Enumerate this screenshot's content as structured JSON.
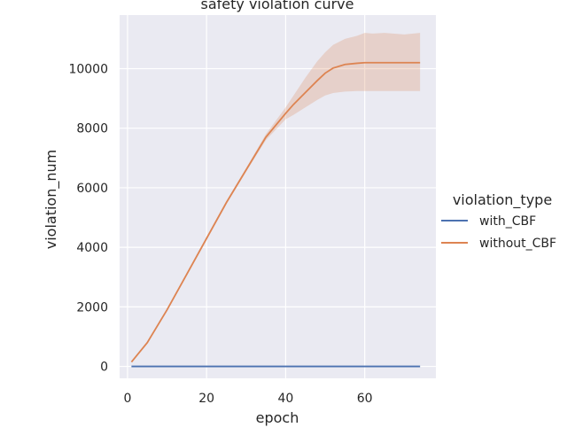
{
  "chart_data": {
    "type": "line",
    "title": "safety violation curve",
    "xlabel": "epoch",
    "ylabel": "violation_num",
    "xlim": [
      -2,
      78
    ],
    "ylim": [
      -400,
      11800
    ],
    "xticks": [
      "0",
      "20",
      "40",
      "60"
    ],
    "xtick_values": [
      0,
      20,
      40,
      60
    ],
    "yticks": [
      "0",
      "2000",
      "4000",
      "6000",
      "8000",
      "10000"
    ],
    "ytick_values": [
      0,
      2000,
      4000,
      6000,
      8000,
      10000
    ],
    "grid": true,
    "legend": {
      "title": "violation_type",
      "placement": "right"
    },
    "series": [
      {
        "name": "with_CBF",
        "color": "#4c72b0",
        "x": [
          1,
          74
        ],
        "y": [
          0,
          0
        ]
      },
      {
        "name": "without_CBF",
        "color": "#dd8452",
        "x": [
          1,
          5,
          10,
          15,
          20,
          25,
          30,
          35,
          40,
          42,
          45,
          48,
          50,
          52,
          55,
          58,
          60,
          62,
          65,
          70,
          74
        ],
        "y": [
          150,
          800,
          1900,
          3100,
          4300,
          5500,
          6600,
          7700,
          8500,
          8800,
          9200,
          9600,
          9850,
          10020,
          10140,
          10180,
          10200,
          10200,
          10200,
          10200,
          10200
        ],
        "ci_low": [
          150,
          780,
          1860,
          3050,
          4240,
          5440,
          6540,
          7600,
          8300,
          8450,
          8700,
          8950,
          9100,
          9180,
          9230,
          9250,
          9250,
          9250,
          9250,
          9250,
          9250
        ],
        "ci_high": [
          150,
          820,
          1940,
          3150,
          4360,
          5560,
          6660,
          7800,
          8700,
          9100,
          9700,
          10250,
          10550,
          10800,
          11000,
          11100,
          11200,
          11180,
          11200,
          11150,
          11200
        ]
      }
    ]
  }
}
